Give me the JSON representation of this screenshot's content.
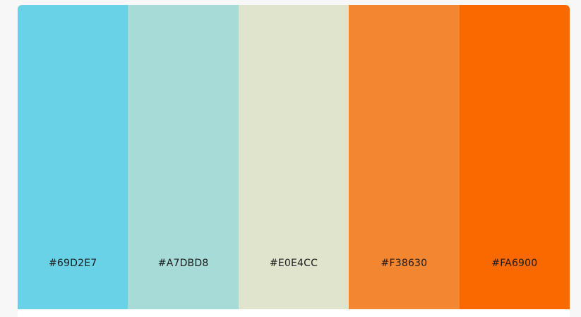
{
  "palette": {
    "colors": [
      {
        "hex": "#69D2E7",
        "label": "#69D2E7"
      },
      {
        "hex": "#A7DBD8",
        "label": "#A7DBD8"
      },
      {
        "hex": "#E0E4CC",
        "label": "#E0E4CC"
      },
      {
        "hex": "#F38630",
        "label": "#F38630"
      },
      {
        "hex": "#FA6900",
        "label": "#FA6900"
      }
    ]
  }
}
